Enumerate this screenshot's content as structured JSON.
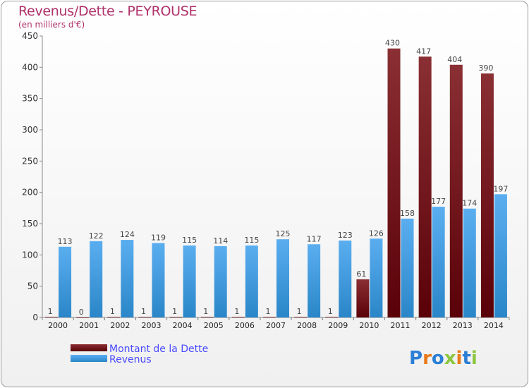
{
  "title": "Revenus/Dette - PEYROUSE",
  "subtitle": "(en milliers d'€)",
  "colors": {
    "dette": "#7a0f12",
    "revenus": "#3e9be0",
    "title": "#b0306a",
    "legend_text": "#4a4aff"
  },
  "legend": {
    "dette_label": "Montant de la Dette",
    "revenus_label": "Revenus"
  },
  "logo": {
    "text": "Proxiti",
    "letters": [
      {
        "ch": "P",
        "color": "#2b7fd6"
      },
      {
        "ch": "r",
        "color": "#e87a1a"
      },
      {
        "ch": "o",
        "color": "#2b7fd6"
      },
      {
        "ch": "x",
        "color": "#8cc63f"
      },
      {
        "ch": "i",
        "color": "#e87a1a"
      },
      {
        "ch": "t",
        "color": "#2b7fd6"
      },
      {
        "ch": "i",
        "color": "#8cc63f"
      }
    ]
  },
  "chart_data": {
    "type": "bar",
    "title": "Revenus/Dette - PEYROUSE",
    "subtitle": "(en milliers d'€)",
    "categories": [
      "2000",
      "2001",
      "2002",
      "2003",
      "2004",
      "2005",
      "2006",
      "2007",
      "2008",
      "2009",
      "2010",
      "2011",
      "2012",
      "2013",
      "2014"
    ],
    "series": [
      {
        "name": "Montant de la Dette",
        "values": [
          1,
          0,
          1,
          1,
          1,
          1,
          1,
          1,
          1,
          1,
          61,
          430,
          417,
          404,
          390
        ]
      },
      {
        "name": "Revenus",
        "values": [
          113,
          122,
          124,
          119,
          115,
          114,
          115,
          125,
          117,
          123,
          126,
          158,
          177,
          174,
          197
        ]
      }
    ],
    "ylim": [
      0,
      450
    ],
    "yticks": [
      0,
      50,
      100,
      150,
      200,
      250,
      300,
      350,
      400,
      450
    ],
    "grid": false,
    "legend_position": "bottom-left"
  }
}
